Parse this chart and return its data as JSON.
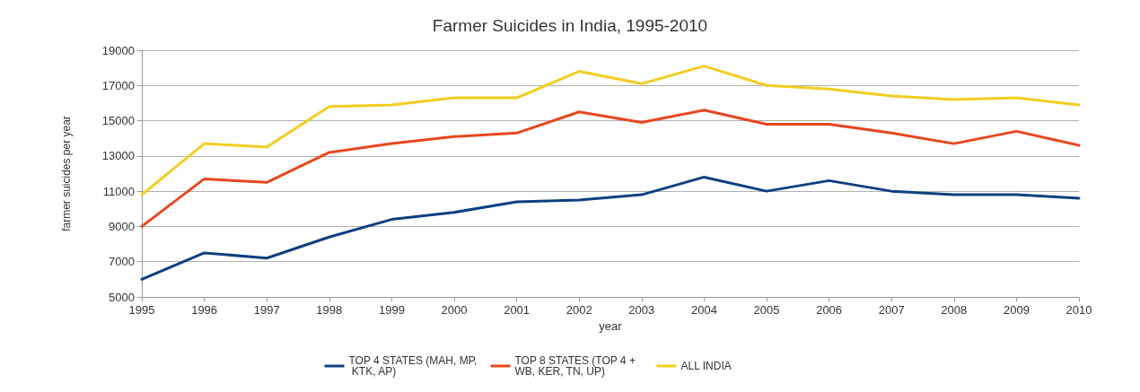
{
  "chart_data": {
    "type": "line",
    "title": "Farmer Suicides in India, 1995-2010",
    "xlabel": "year",
    "ylabel": "farmer suicides per year",
    "categories": [
      "1995",
      "1996",
      "1997",
      "1998",
      "1999",
      "2000",
      "2001",
      "2002",
      "2003",
      "2004",
      "2005",
      "2006",
      "2007",
      "2008",
      "2009",
      "2010"
    ],
    "series": [
      {
        "name": "TOP 4 STATES (MAH, MP, KTK, AP)",
        "color": "#0d3f80",
        "values": [
          6000,
          7500,
          7200,
          8400,
          9400,
          9800,
          10400,
          10500,
          10800,
          11800,
          11000,
          11600,
          11000,
          10800,
          10800,
          10600
        ]
      },
      {
        "name": "TOP 8 STATES (TOP 4 + WB, KER, TN, UP)",
        "color": "#e8461f",
        "values": [
          9000,
          11700,
          11500,
          13200,
          13700,
          14100,
          14300,
          15500,
          14900,
          15600,
          14800,
          14800,
          14300,
          13700,
          14400,
          13600
        ]
      },
      {
        "name": "ALL INDIA",
        "color": "#f3cd1f",
        "values": [
          10800,
          13700,
          13500,
          15800,
          15900,
          16300,
          16300,
          17800,
          17100,
          18100,
          17000,
          16800,
          16400,
          16200,
          16300,
          15900
        ]
      }
    ],
    "ylim": [
      5000,
      19000
    ],
    "yticks": [
      5000,
      7000,
      9000,
      11000,
      13000,
      15000,
      17000,
      19000
    ],
    "grid": "y",
    "legend": "bottom",
    "marker": "none",
    "line_style": "solid"
  }
}
